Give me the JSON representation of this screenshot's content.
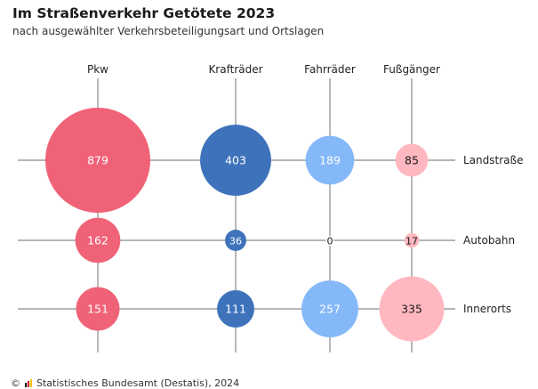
{
  "chart": {
    "title": "Im Straßenverkehr Getötete 2023",
    "subtitle": "nach ausgewählter Verkehrsbeteiligungsart und Ortslagen"
  },
  "chart_data": {
    "type": "bubble",
    "title": "Im Straßenverkehr Getötete 2023",
    "subtitle": "nach ausgewählter Verkehrsbeteiligungsart und Ortslagen",
    "columns": [
      "Pkw",
      "Krafträder",
      "Fahrräder",
      "Fußgänger"
    ],
    "rows": [
      "Landstraße",
      "Autobahn",
      "Innerorts"
    ],
    "values": [
      [
        879,
        403,
        189,
        85
      ],
      [
        162,
        36,
        0,
        17
      ],
      [
        151,
        111,
        257,
        335
      ]
    ],
    "colors": [
      "#f06277",
      "#3e73bb",
      "#84b8f9",
      "#ffb7c0"
    ]
  },
  "footer": {
    "copyright_icon": "copyright-icon",
    "logo_icon": "destatis-logo-icon",
    "source": "Statistisches Bundesamt (Destatis), 2024"
  }
}
